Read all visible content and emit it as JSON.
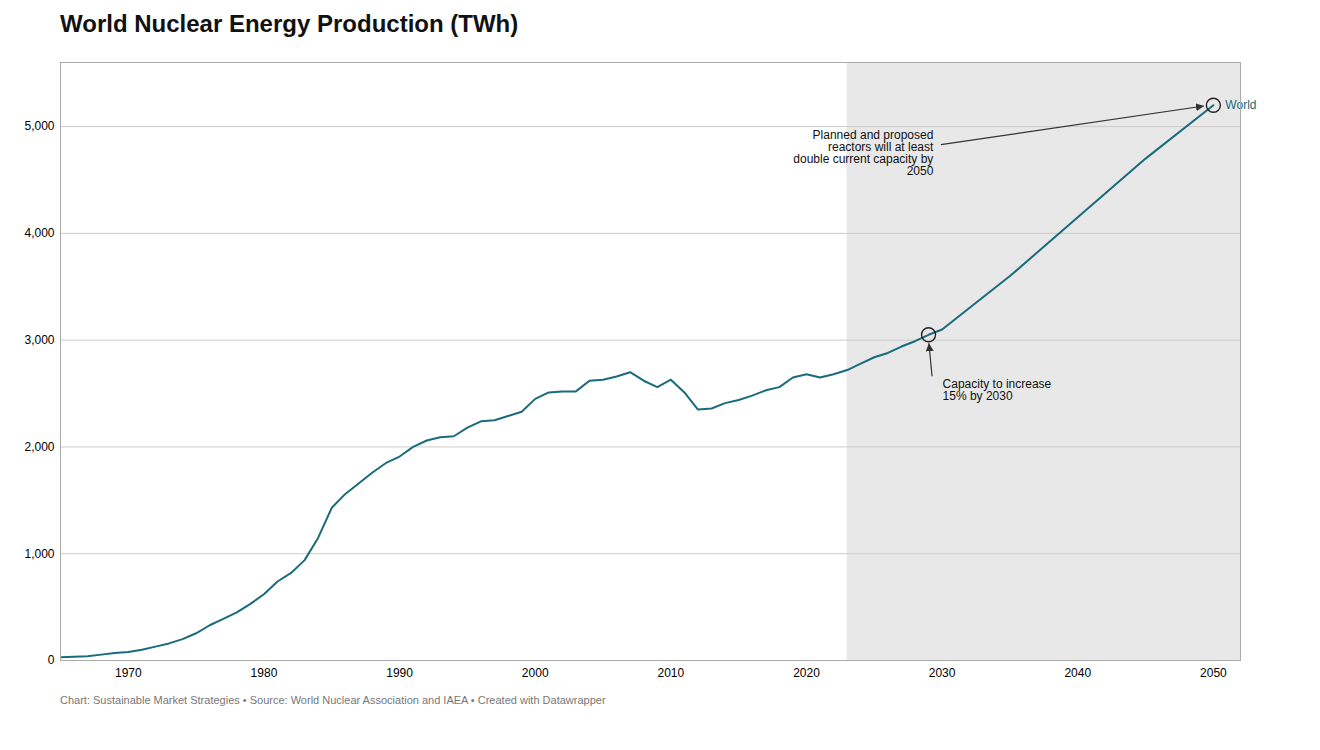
{
  "chart_data": {
    "type": "line",
    "title": "World Nuclear Energy Production (TWh)",
    "footer": "Chart: Sustainable Market Strategies • Source: World Nuclear Association and IAEA • Created with Datawrapper",
    "xlim": [
      1965,
      2052
    ],
    "ylim": [
      0,
      5600
    ],
    "xticks": [
      1970,
      1980,
      1990,
      2000,
      2010,
      2020,
      2030,
      2040,
      2050
    ],
    "yticks": [
      0,
      {
        "value": 1000,
        "label": "1,000"
      },
      {
        "value": 2000,
        "label": "2,000"
      },
      {
        "value": 3000,
        "label": "3,000"
      },
      {
        "value": 4000,
        "label": "4,000"
      },
      {
        "value": 5000,
        "label": "5,000"
      }
    ],
    "grid": true,
    "shaded_region": {
      "x1": 2023,
      "color": "#e8e8e8"
    },
    "series": [
      {
        "name": "World",
        "color": "#1a6b7c",
        "x": [
          1965,
          1966,
          1967,
          1968,
          1969,
          1970,
          1971,
          1972,
          1973,
          1974,
          1975,
          1976,
          1977,
          1978,
          1979,
          1980,
          1981,
          1982,
          1983,
          1984,
          1985,
          1986,
          1987,
          1988,
          1989,
          1990,
          1991,
          1992,
          1993,
          1994,
          1995,
          1996,
          1997,
          1998,
          1999,
          2000,
          2001,
          2002,
          2003,
          2004,
          2005,
          2006,
          2007,
          2008,
          2009,
          2010,
          2011,
          2012,
          2013,
          2014,
          2015,
          2016,
          2017,
          2018,
          2019,
          2020,
          2021,
          2022,
          2022,
          2023,
          2024,
          2025,
          2026,
          2027,
          2028,
          2029,
          2030,
          2035,
          2040,
          2045,
          2050
        ],
        "values": [
          30,
          35,
          40,
          55,
          70,
          79,
          100,
          130,
          160,
          200,
          255,
          330,
          390,
          450,
          530,
          620,
          740,
          820,
          940,
          1150,
          1430,
          1560,
          1660,
          1760,
          1850,
          1910,
          2000,
          2060,
          2090,
          2100,
          2180,
          2240,
          2250,
          2290,
          2330,
          2450,
          2510,
          2520,
          2520,
          2620,
          2630,
          2660,
          2700,
          2620,
          2560,
          2630,
          2510,
          2350,
          2360,
          2410,
          2440,
          2480,
          2530,
          2560,
          2650,
          2680,
          2650,
          2680,
          2680,
          2720,
          2780,
          2840,
          2880,
          2940,
          2990,
          3050,
          3100,
          3600,
          4150,
          4700,
          5200
        ]
      }
    ],
    "annotations": [
      {
        "text": "Planned and proposed\nreactors will at least\ndouble current capacity by\n2050",
        "x": 2050,
        "y": 5200
      },
      {
        "text": "Capacity to increase\n15% by 2030",
        "x": 2029,
        "y": 3050
      }
    ]
  }
}
